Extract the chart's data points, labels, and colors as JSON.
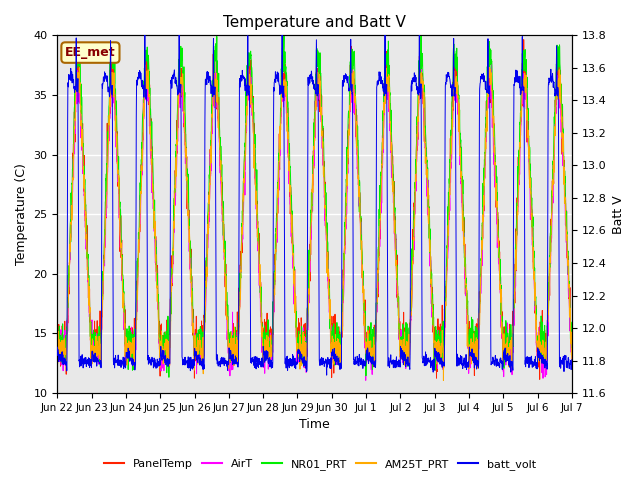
{
  "title": "Temperature and Batt V",
  "xlabel": "Time",
  "ylabel_left": "Temperature (C)",
  "ylabel_right": "Batt V",
  "annotation": "EE_met",
  "ylim_left": [
    10,
    40
  ],
  "ylim_right": [
    11.6,
    13.8
  ],
  "background_color": "#e8e8e8",
  "series_colors": {
    "PanelTemp": "#ff2200",
    "AirT": "#ff00ff",
    "NR01_PRT": "#00ee00",
    "AM25T_PRT": "#ffaa00",
    "batt_volt": "#0000ee"
  },
  "legend_labels": [
    "PanelTemp",
    "AirT",
    "NR01_PRT",
    "AM25T_PRT",
    "batt_volt"
  ],
  "xtick_labels": [
    "Jun 22",
    "Jun 23",
    "Jun 24",
    "Jun 25",
    "Jun 26",
    "Jun 27",
    "Jun 28",
    "Jun 29",
    "Jun 30",
    "Jul 1",
    "Jul 2",
    "Jul 3",
    "Jul 4",
    "Jul 5",
    "Jul 6",
    "Jul 7"
  ],
  "n_days": 15,
  "pts_per_day": 144,
  "figsize": [
    6.4,
    4.8
  ],
  "dpi": 100
}
